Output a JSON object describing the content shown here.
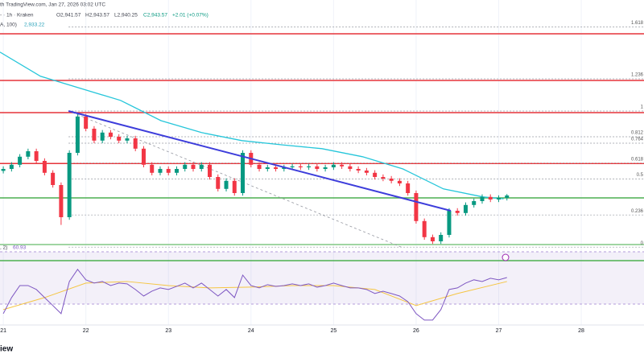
{
  "chart_data": {
    "type": "candlestick",
    "header": {
      "source": "th TradingView.com, Jan 27, 2026 03:02 UTC",
      "symbol": "- · 1h · Kraken",
      "open": "O2,941.57",
      "high": "H2,943.57",
      "low": "L2,940.25",
      "close": "C2,943.57",
      "change": "+2.01 (+0.07%)"
    },
    "logo": "iew",
    "xlim": [
      20.96,
      28.76
    ],
    "xticks": [
      21,
      22,
      23,
      24,
      25,
      26,
      27,
      28
    ],
    "ylim": [
      2726,
      3551
    ],
    "up_color": "#089981",
    "down_color": "#f23645",
    "grid": true,
    "candles": {
      "x": [
        21.0,
        21.1,
        21.2,
        21.3,
        21.4,
        21.5,
        21.6,
        21.7,
        21.8,
        21.9,
        22.0,
        22.1,
        22.2,
        22.3,
        22.4,
        22.5,
        22.6,
        22.7,
        22.8,
        22.9,
        23.0,
        23.1,
        23.2,
        23.3,
        23.4,
        23.5,
        23.6,
        23.7,
        23.8,
        23.9,
        24.0,
        24.1,
        24.2,
        24.3,
        24.4,
        24.5,
        24.6,
        24.7,
        24.8,
        24.9,
        25.0,
        25.1,
        25.2,
        25.3,
        25.4,
        25.5,
        25.6,
        25.7,
        25.8,
        25.9,
        26.0,
        26.1,
        26.2,
        26.3,
        26.4,
        26.5,
        26.6,
        26.7,
        26.8,
        26.9,
        27.0,
        27.1
      ],
      "open": [
        3020,
        3026,
        3039,
        3064,
        3081,
        3051,
        3014,
        2976,
        2876,
        3076,
        3189,
        3151,
        3114,
        3139,
        3126,
        3114,
        3121,
        3089,
        3039,
        3014,
        3026,
        3014,
        3026,
        3039,
        3026,
        3039,
        3001,
        2964,
        2989,
        2951,
        3076,
        3039,
        3026,
        3031,
        3026,
        3031,
        3034,
        3031,
        3034,
        3026,
        3031,
        3039,
        3034,
        3026,
        3021,
        3014,
        3001,
        2996,
        2989,
        2981,
        2951,
        2864,
        2814,
        2801,
        2821,
        2896,
        2889,
        2914,
        2926,
        2939,
        2931,
        2936
      ],
      "high": [
        3034,
        3047,
        3072,
        3089,
        3089,
        3059,
        3022,
        2984,
        3084,
        3197,
        3197,
        3159,
        3147,
        3147,
        3134,
        3129,
        3129,
        3097,
        3047,
        3034,
        3034,
        3034,
        3047,
        3047,
        3047,
        3047,
        3009,
        2997,
        2997,
        3084,
        3084,
        3047,
        3039,
        3039,
        3039,
        3042,
        3042,
        3042,
        3042,
        3039,
        3047,
        3047,
        3042,
        3034,
        3029,
        3022,
        3009,
        3004,
        2997,
        2989,
        2959,
        2872,
        2822,
        2829,
        2904,
        2904,
        2922,
        2934,
        2947,
        2947,
        2944,
        2948
      ],
      "low": [
        3012,
        3018,
        3031,
        3056,
        3043,
        3006,
        2968,
        2852,
        2868,
        3068,
        3143,
        3106,
        3106,
        3118,
        3106,
        3106,
        3081,
        3031,
        3006,
        3006,
        3006,
        3006,
        3018,
        3018,
        3018,
        2993,
        2956,
        2956,
        2943,
        2943,
        3031,
        3018,
        3018,
        3018,
        3018,
        3023,
        3023,
        3023,
        3018,
        3018,
        3023,
        3026,
        3018,
        3013,
        3006,
        2993,
        2988,
        2981,
        2973,
        2943,
        2856,
        2806,
        2793,
        2793,
        2813,
        2881,
        2881,
        2906,
        2918,
        2923,
        2923,
        2928
      ],
      "close": [
        3026,
        3039,
        3064,
        3081,
        3051,
        3014,
        2976,
        2876,
        3076,
        3189,
        3151,
        3114,
        3139,
        3126,
        3114,
        3121,
        3089,
        3039,
        3014,
        3026,
        3014,
        3026,
        3039,
        3026,
        3039,
        3001,
        2964,
        2989,
        2951,
        3076,
        3039,
        3026,
        3031,
        3026,
        3031,
        3034,
        3031,
        3034,
        3026,
        3031,
        3039,
        3034,
        3026,
        3021,
        3014,
        3001,
        2996,
        2989,
        2981,
        2951,
        2864,
        2814,
        2801,
        2821,
        2896,
        2889,
        2914,
        2926,
        2939,
        2931,
        2936,
        2943.57
      ]
    },
    "moving_average": {
      "name": "A, 100)",
      "color": "#26c6da",
      "x": [
        20.96,
        21.45,
        21.94,
        22.42,
        22.91,
        23.4,
        23.89,
        24.37,
        24.86,
        25.35,
        25.84,
        26.33,
        26.81,
        27.06
      ],
      "values": [
        3389,
        3314,
        3276,
        3239,
        3176,
        3139,
        3114,
        3101,
        3089,
        3064,
        3026,
        2964,
        2939,
        2933.22
      ],
      "last_label": "2,933.22"
    },
    "levels": [
      {
        "value": 3446,
        "color": "#e5343a"
      },
      {
        "value": 3301,
        "color": "#e5343a"
      },
      {
        "value": 3201,
        "color": "#e5343a"
      },
      {
        "value": 3043,
        "color": "#e5343a"
      },
      {
        "value": 2936,
        "color": "#4caf50"
      },
      {
        "value": 2791,
        "color": "#81c784"
      },
      {
        "value": 2741,
        "color": "#4caf50"
      }
    ],
    "fib_levels": [
      {
        "ratio": 1.618,
        "price": 3467
      },
      {
        "ratio": 1.236,
        "price": 3306
      },
      {
        "ratio": 1,
        "price": 3206
      },
      {
        "ratio": 0.812,
        "price": 3126
      },
      {
        "ratio": 0.764,
        "price": 3106
      },
      {
        "ratio": 0.618,
        "price": 3044
      },
      {
        "ratio": 0.5,
        "price": 2995
      },
      {
        "ratio": 0.236,
        "price": 2883
      },
      {
        "ratio": 0,
        "price": 2783
      }
    ],
    "fib_start_x": 21.79,
    "trendline": {
      "color": "#3d3ddb",
      "x": [
        21.79,
        26.42
      ],
      "values": [
        3206,
        2896
      ]
    },
    "fib_diagonal": {
      "color": "#9598a1",
      "x": [
        21.84,
        25.84
      ],
      "values": [
        3201,
        2781
      ]
    },
    "rsi": {
      "name": ", 2)",
      "color": "#7e57c2",
      "ylim": [
        24,
        86.8
      ],
      "last_label": "60.93",
      "values": [
        33.3,
        45.6,
        54.8,
        54.8,
        51.8,
        45.6,
        39.5,
        33.3,
        57.9,
        67.2,
        59.2,
        56.7,
        57.9,
        54.8,
        56.7,
        56.1,
        51.8,
        46.8,
        50.5,
        53,
        51.8,
        54.2,
        56.7,
        53,
        56.7,
        51.8,
        46.8,
        51.8,
        45.6,
        62.8,
        54.8,
        53,
        55.5,
        54.2,
        54.8,
        56.1,
        54.8,
        56.1,
        53.6,
        54.8,
        56.7,
        54.8,
        53,
        53,
        51.8,
        48.7,
        50.5,
        48.7,
        46.8,
        42.5,
        33.3,
        28.4,
        28.4,
        36.4,
        51.8,
        53,
        56.7,
        59.2,
        57.9,
        60.4,
        59.2,
        60.93
      ],
      "ma": {
        "color": "#f5c542",
        "x": [
          21.0,
          21.5,
          22.0,
          22.5,
          23.0,
          23.5,
          24.0,
          24.5,
          25.0,
          25.5,
          26.0,
          26.5,
          27.1
        ],
        "values": [
          36.4,
          45.6,
          56.7,
          57.9,
          54.8,
          53,
          53.6,
          54.8,
          54.8,
          51.8,
          39.5,
          48.7,
          57.9
        ]
      }
    }
  }
}
